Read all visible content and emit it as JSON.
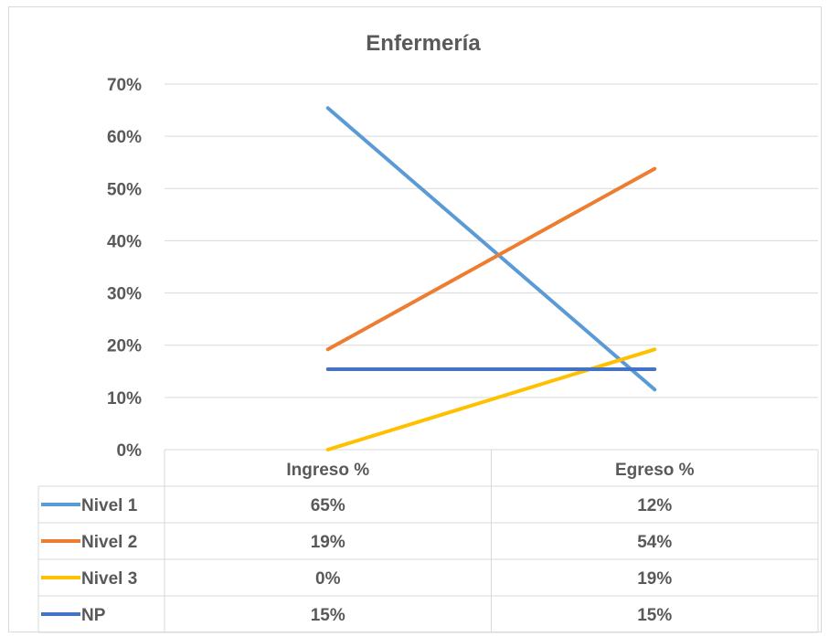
{
  "chart_data": {
    "type": "line",
    "title": "Enfermería",
    "categories": [
      "Ingreso %",
      "Egreso %"
    ],
    "ylim": [
      0,
      0.7
    ],
    "yticks": [
      {
        "value": 0,
        "label": "0%"
      },
      {
        "value": 0.1,
        "label": "10%"
      },
      {
        "value": 0.2,
        "label": "20%"
      },
      {
        "value": 0.3,
        "label": "30%"
      },
      {
        "value": 0.4,
        "label": "40%"
      },
      {
        "value": 0.5,
        "label": "50%"
      },
      {
        "value": 0.6,
        "label": "60%"
      },
      {
        "value": 0.7,
        "label": "70%"
      }
    ],
    "grid": true,
    "legend": "data-table",
    "series": [
      {
        "name": "Nivel 1",
        "color": "#5B9BD5",
        "values": [
          0.654,
          0.115
        ],
        "labels": [
          "65%",
          "12%"
        ]
      },
      {
        "name": "Nivel 2",
        "color": "#ED7D31",
        "values": [
          0.192,
          0.538
        ],
        "labels": [
          "19%",
          "54%"
        ]
      },
      {
        "name": "Nivel 3",
        "color": "#FFC000",
        "values": [
          0.0,
          0.192
        ],
        "labels": [
          "0%",
          "19%"
        ]
      },
      {
        "name": "NP",
        "color": "#4472C4",
        "values": [
          0.154,
          0.154
        ],
        "labels": [
          "15%",
          "15%"
        ]
      }
    ]
  }
}
